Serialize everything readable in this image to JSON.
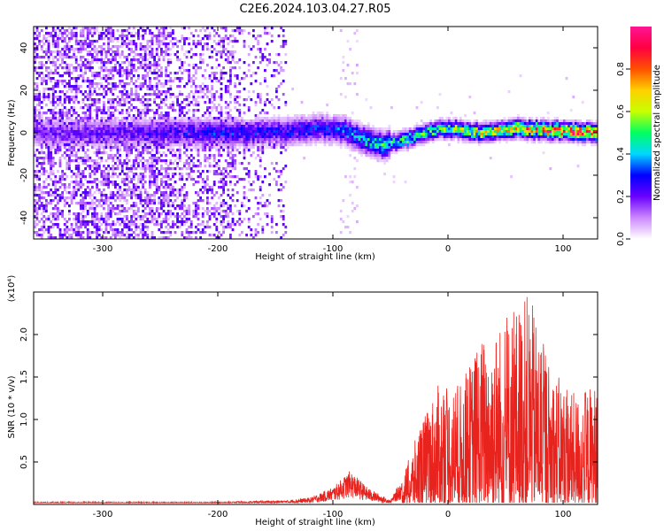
{
  "figure_title": "C2E6.2024.103.04.27.R05",
  "chart_data": [
    {
      "type": "heatmap",
      "xlabel": "Height of straight line (km)",
      "ylabel": "Frequency (Hz)",
      "xlim": [
        -360,
        130
      ],
      "ylim": [
        -50,
        50
      ],
      "xticks": [
        -300,
        -200,
        -100,
        0,
        100
      ],
      "yticks": [
        -40,
        -20,
        0,
        20,
        40
      ],
      "colorbar": {
        "label": "Normalized spectral amplitude",
        "range": [
          0,
          1
        ],
        "ticks": [
          "0.0",
          "0.2",
          "0.4",
          "0.6",
          "0.8"
        ],
        "colors": [
          "#ffffff",
          "#cc88ff",
          "#6a00ff",
          "#0000ff",
          "#00d8ff",
          "#00ff60",
          "#c8ff00",
          "#ffd000",
          "#ff5000",
          "#ff0040",
          "#ff1493"
        ]
      },
      "ridge": {
        "center_hz": [
          {
            "x": -360,
            "y": 0
          },
          {
            "x": -250,
            "y": 0
          },
          {
            "x": -150,
            "y": 0
          },
          {
            "x": -110,
            "y": 2
          },
          {
            "x": -90,
            "y": 1
          },
          {
            "x": -70,
            "y": -4
          },
          {
            "x": -55,
            "y": -6
          },
          {
            "x": -40,
            "y": -4
          },
          {
            "x": -20,
            "y": 0
          },
          {
            "x": 0,
            "y": 2
          },
          {
            "x": 30,
            "y": 0
          },
          {
            "x": 60,
            "y": 2
          },
          {
            "x": 90,
            "y": 1
          },
          {
            "x": 130,
            "y": 0
          }
        ],
        "peak_amplitude": [
          {
            "x": -360,
            "y": 0.2
          },
          {
            "x": -250,
            "y": 0.25
          },
          {
            "x": -200,
            "y": 0.32
          },
          {
            "x": -150,
            "y": 0.3
          },
          {
            "x": -100,
            "y": 0.33
          },
          {
            "x": -60,
            "y": 0.5
          },
          {
            "x": -20,
            "y": 0.55
          },
          {
            "x": 20,
            "y": 0.65
          },
          {
            "x": 60,
            "y": 0.8
          },
          {
            "x": 100,
            "y": 0.9
          },
          {
            "x": 130,
            "y": 0.95
          }
        ]
      },
      "noise_region_x": [
        -360,
        -140
      ]
    },
    {
      "type": "line",
      "xlabel": "Height of straight line (km)",
      "ylabel": "SNR (10 * v/v)",
      "y_multiplier": "(x10⁴)",
      "xlim": [
        -360,
        130
      ],
      "ylim": [
        0,
        2.5
      ],
      "xticks": [
        -300,
        -200,
        -100,
        0,
        100
      ],
      "yticks": [
        "0.5",
        "1.0",
        "1.5",
        "2.0"
      ],
      "series": [
        {
          "color": "#e8231e",
          "envelope": [
            {
              "x": -360,
              "y": 0.03
            },
            {
              "x": -200,
              "y": 0.03
            },
            {
              "x": -140,
              "y": 0.05
            },
            {
              "x": -120,
              "y": 0.08
            },
            {
              "x": -100,
              "y": 0.2
            },
            {
              "x": -85,
              "y": 0.4
            },
            {
              "x": -70,
              "y": 0.2
            },
            {
              "x": -50,
              "y": 0.05
            },
            {
              "x": -40,
              "y": 0.3
            },
            {
              "x": -25,
              "y": 0.9
            },
            {
              "x": -10,
              "y": 1.4
            },
            {
              "x": 10,
              "y": 1.4
            },
            {
              "x": 30,
              "y": 2.0
            },
            {
              "x": 50,
              "y": 2.2
            },
            {
              "x": 70,
              "y": 2.5
            },
            {
              "x": 90,
              "y": 1.6
            },
            {
              "x": 110,
              "y": 1.3
            },
            {
              "x": 130,
              "y": 1.45
            }
          ]
        }
      ]
    }
  ]
}
